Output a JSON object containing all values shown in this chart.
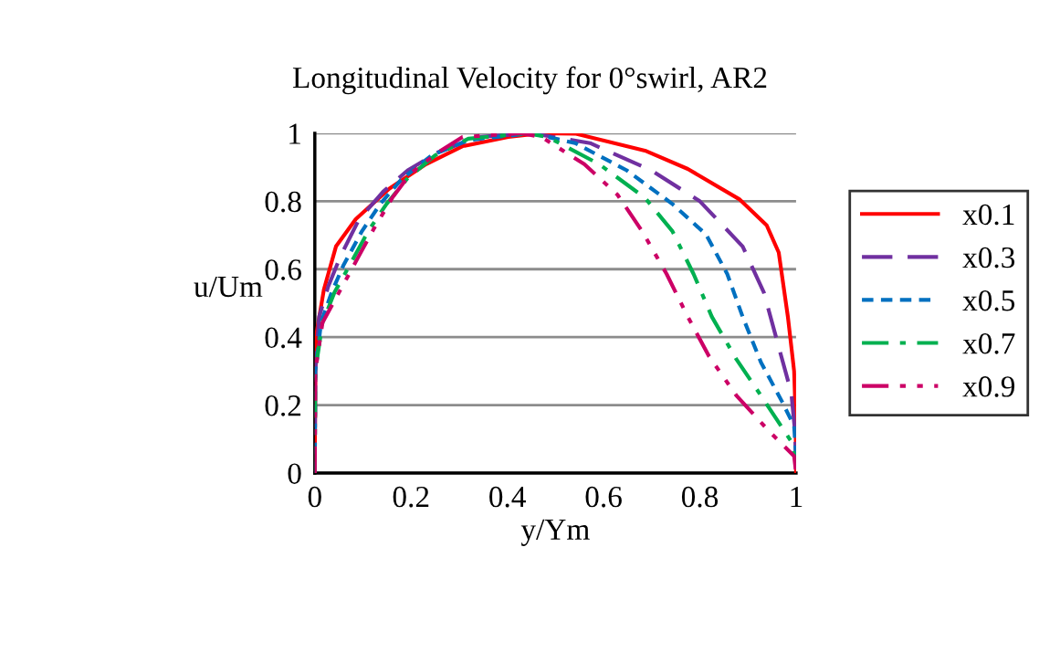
{
  "chart_data": {
    "type": "line",
    "title": "Longitudinal Velocity for 0°swirl, AR2",
    "xlabel": "y/Ym",
    "ylabel": "u/Um",
    "xlim": [
      0,
      1
    ],
    "ylim": [
      0,
      1
    ],
    "xticks": [
      0,
      0.2,
      0.4,
      0.6,
      0.8,
      1
    ],
    "yticks": [
      0,
      0.2,
      0.4,
      0.6,
      0.8,
      1
    ],
    "grid": "y",
    "legend": "right",
    "series": [
      {
        "name": "x0.1",
        "color": "#ff0000",
        "line_style": "solid",
        "x": [
          0,
          0.001,
          0.003,
          0.019,
          0.044,
          0.085,
          0.155,
          0.231,
          0.307,
          0.402,
          0.47,
          0.541,
          0.686,
          0.775,
          0.882,
          0.939,
          0.964,
          0.983,
          0.996,
          0.999,
          1
        ],
        "values": [
          0,
          0.3,
          0.407,
          0.541,
          0.667,
          0.747,
          0.837,
          0.909,
          0.962,
          0.989,
          1,
          0.999,
          0.949,
          0.895,
          0.806,
          0.729,
          0.649,
          0.46,
          0.3,
          0.17,
          0
        ]
      },
      {
        "name": "x0.3",
        "color": "#7030a0",
        "line_style": "dashed",
        "x": [
          0,
          0.001,
          0.009,
          0.028,
          0.054,
          0.092,
          0.142,
          0.193,
          0.256,
          0.338,
          0.45,
          0.572,
          0.699,
          0.8,
          0.889,
          0.933,
          0.964,
          0.99,
          0.998,
          1
        ],
        "values": [
          0,
          0.3,
          0.46,
          0.55,
          0.64,
          0.747,
          0.828,
          0.891,
          0.944,
          0.989,
          1,
          0.971,
          0.891,
          0.8,
          0.667,
          0.532,
          0.371,
          0.237,
          0.12,
          0.02
        ]
      },
      {
        "name": "x0.5",
        "color": "#0070c0",
        "line_style": "dotted",
        "x": [
          0,
          0.001,
          0.013,
          0.035,
          0.06,
          0.098,
          0.136,
          0.18,
          0.243,
          0.319,
          0.45,
          0.541,
          0.648,
          0.743,
          0.813,
          0.857,
          0.889,
          0.927,
          0.971,
          0.996,
          1
        ],
        "values": [
          0,
          0.3,
          0.443,
          0.532,
          0.613,
          0.712,
          0.792,
          0.864,
          0.935,
          0.98,
          1,
          0.971,
          0.891,
          0.792,
          0.702,
          0.586,
          0.46,
          0.326,
          0.21,
          0.138,
          0.05
        ]
      },
      {
        "name": "x0.7",
        "color": "#00b050",
        "line_style": "dashdot",
        "x": [
          0,
          0.001,
          0.016,
          0.041,
          0.073,
          0.111,
          0.149,
          0.193,
          0.25,
          0.319,
          0.44,
          0.484,
          0.591,
          0.686,
          0.743,
          0.787,
          0.825,
          0.876,
          0.927,
          0.99,
          1
        ],
        "values": [
          0,
          0.3,
          0.443,
          0.532,
          0.613,
          0.712,
          0.792,
          0.868,
          0.935,
          0.984,
          1,
          0.989,
          0.909,
          0.81,
          0.712,
          0.586,
          0.46,
          0.335,
          0.228,
          0.093,
          0.03
        ]
      },
      {
        "name": "x0.9",
        "color": "#cc0066",
        "line_style": "dashdotdot",
        "x": [
          0,
          0.001,
          0.016,
          0.047,
          0.092,
          0.123,
          0.161,
          0.199,
          0.256,
          0.307,
          0.43,
          0.471,
          0.56,
          0.629,
          0.68,
          0.731,
          0.775,
          0.819,
          0.876,
          0.946,
          0.996,
          1
        ],
        "values": [
          0,
          0.3,
          0.443,
          0.523,
          0.64,
          0.72,
          0.81,
          0.882,
          0.944,
          0.989,
          1,
          0.989,
          0.909,
          0.819,
          0.712,
          0.586,
          0.46,
          0.344,
          0.228,
          0.12,
          0.05,
          0
        ]
      }
    ]
  }
}
